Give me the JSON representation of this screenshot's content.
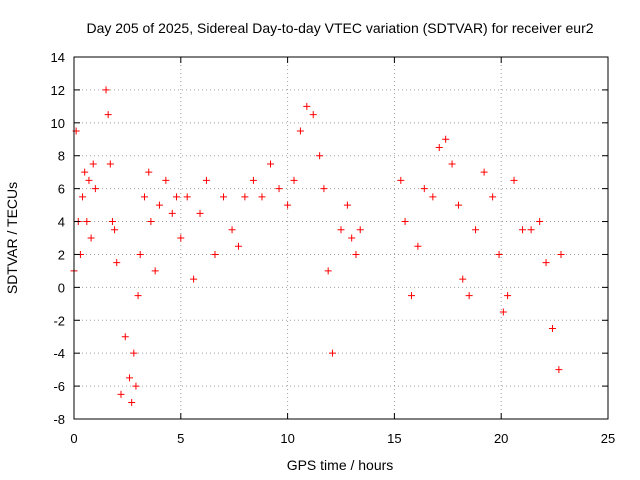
{
  "chart_data": {
    "type": "scatter",
    "title": "Day 205 of 2025, Sidereal Day-to-day VTEC variation (SDTVAR) for receiver eur2",
    "xlabel": "GPS time / hours",
    "ylabel": "SDTVAR / TECUs",
    "xlim": [
      0,
      25
    ],
    "ylim": [
      -8,
      14
    ],
    "xticks": [
      0,
      5,
      10,
      15,
      20,
      25
    ],
    "yticks": [
      -8,
      -6,
      -4,
      -2,
      0,
      2,
      4,
      6,
      8,
      10,
      12,
      14
    ],
    "grid": true,
    "marker": "plus",
    "color": "#ff0000",
    "series": [
      {
        "name": "SDTVAR",
        "x": [
          0.0,
          0.1,
          0.2,
          0.3,
          0.4,
          0.5,
          0.6,
          0.7,
          0.8,
          0.9,
          1.0,
          1.5,
          1.6,
          1.7,
          1.8,
          1.9,
          2.0,
          2.2,
          2.4,
          2.6,
          2.7,
          2.8,
          2.9,
          3.0,
          3.1,
          3.3,
          3.5,
          3.6,
          3.8,
          4.0,
          4.3,
          4.6,
          4.8,
          5.0,
          5.3,
          5.6,
          5.9,
          6.2,
          6.6,
          7.0,
          7.4,
          7.7,
          8.0,
          8.4,
          8.8,
          9.2,
          9.6,
          10.0,
          10.3,
          10.6,
          10.9,
          11.2,
          11.5,
          11.7,
          11.9,
          12.1,
          12.5,
          12.8,
          13.0,
          13.2,
          13.4,
          15.3,
          15.5,
          15.8,
          16.1,
          16.4,
          16.8,
          17.1,
          17.4,
          17.7,
          18.0,
          18.2,
          18.5,
          18.8,
          19.2,
          19.6,
          19.9,
          20.1,
          20.3,
          20.6,
          21.0,
          21.4,
          21.8,
          22.1,
          22.4,
          22.7,
          22.8
        ],
        "y": [
          1.0,
          9.5,
          4.0,
          2.0,
          5.5,
          7.0,
          4.0,
          6.5,
          3.0,
          7.5,
          6.0,
          12.0,
          10.5,
          7.5,
          4.0,
          3.5,
          1.5,
          -6.5,
          -3.0,
          -5.5,
          -7.0,
          -4.0,
          -6.0,
          -0.5,
          2.0,
          5.5,
          7.0,
          4.0,
          1.0,
          5.0,
          6.5,
          4.5,
          5.5,
          3.0,
          5.5,
          0.5,
          4.5,
          6.5,
          2.0,
          5.5,
          3.5,
          2.5,
          5.5,
          6.5,
          5.5,
          7.5,
          6.0,
          5.0,
          6.5,
          9.5,
          11.0,
          10.5,
          8.0,
          6.0,
          1.0,
          -4.0,
          3.5,
          5.0,
          3.0,
          2.0,
          3.5,
          6.5,
          4.0,
          -0.5,
          2.5,
          6.0,
          5.5,
          8.5,
          9.0,
          7.5,
          5.0,
          0.5,
          -0.5,
          3.5,
          7.0,
          5.5,
          2.0,
          -1.5,
          -0.5,
          6.5,
          3.5,
          3.5,
          4.0,
          1.5,
          -2.5,
          -5.0,
          2.0
        ]
      }
    ]
  }
}
